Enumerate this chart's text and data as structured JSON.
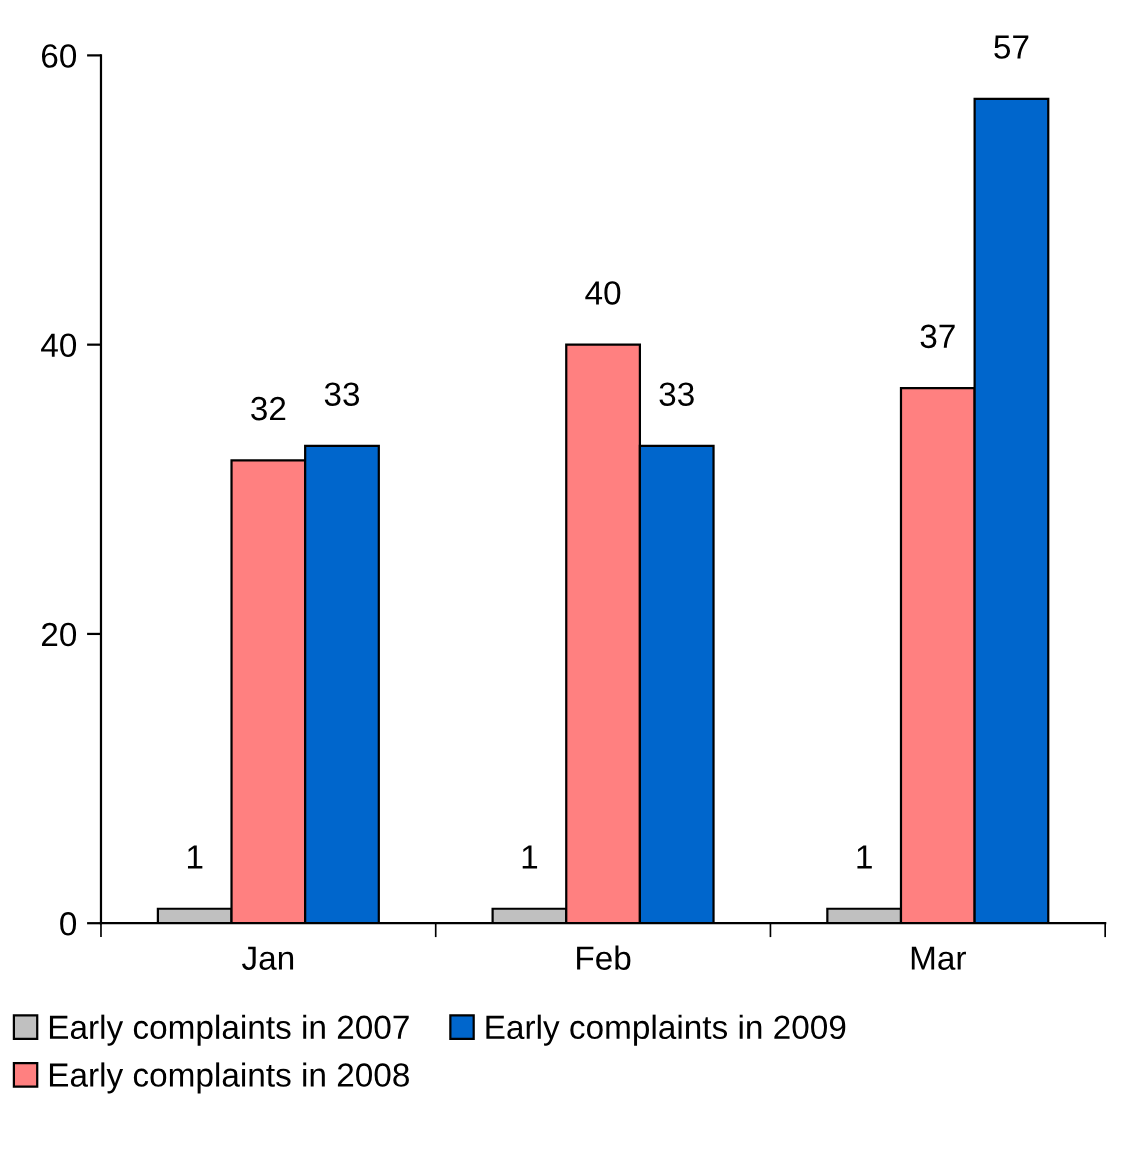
{
  "chart_data": {
    "type": "bar",
    "categories": [
      "Jan",
      "Feb",
      "Mar"
    ],
    "series": [
      {
        "name": "Early complaints in 2007",
        "color": "#c0c0c0",
        "values": [
          1,
          1,
          1
        ]
      },
      {
        "name": "Early complaints in 2008",
        "color": "#ff8080",
        "values": [
          32,
          40,
          37
        ]
      },
      {
        "name": "Early complaints in 2009",
        "color": "#0066cc",
        "values": [
          33,
          33,
          57
        ]
      }
    ],
    "ylim": [
      0,
      60
    ],
    "yticks": [
      0,
      20,
      40,
      60
    ],
    "grid": false,
    "legend": "bottom",
    "data_labels": true
  }
}
